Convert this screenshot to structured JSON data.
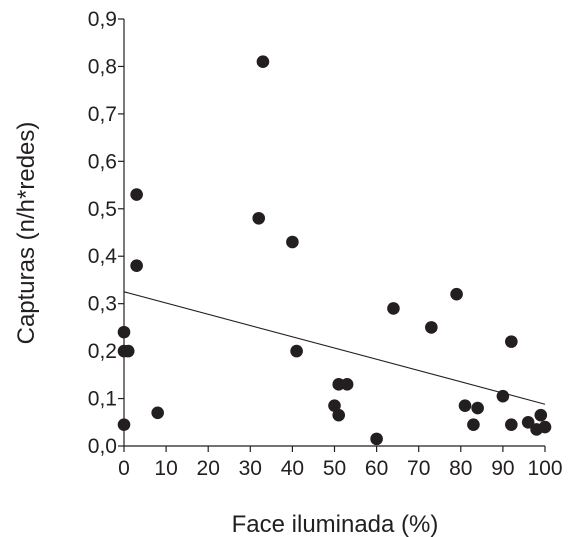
{
  "chart_data": {
    "type": "scatter",
    "title": "",
    "xlabel": "Face iluminada (%)",
    "ylabel": "Capturas (n/h*redes)",
    "xlim": [
      0,
      100
    ],
    "ylim": [
      0,
      0.9
    ],
    "x_ticks": [
      "0",
      "10",
      "20",
      "30",
      "40",
      "50",
      "60",
      "70",
      "80",
      "90",
      "100"
    ],
    "y_ticks": [
      "0,0",
      "0,1",
      "0,2",
      "0,3",
      "0,4",
      "0,5",
      "0,6",
      "0,7",
      "0,8",
      "0,9"
    ],
    "grid": false,
    "legend": "none",
    "point_color": "#231f20",
    "series": [
      {
        "x": [
          0,
          0,
          1,
          0,
          3,
          3,
          8,
          32,
          33,
          40,
          41,
          50,
          51,
          51,
          53,
          60,
          64,
          73,
          79,
          81,
          83,
          84,
          90,
          92,
          92,
          96,
          98,
          99,
          100
        ],
        "y": [
          0.045,
          0.24,
          0.2,
          0.2,
          0.53,
          0.38,
          0.07,
          0.48,
          0.81,
          0.43,
          0.2,
          0.085,
          0.13,
          0.065,
          0.13,
          0.015,
          0.29,
          0.25,
          0.32,
          0.085,
          0.045,
          0.08,
          0.105,
          0.22,
          0.045,
          0.05,
          0.035,
          0.065,
          0.04
        ]
      }
    ],
    "trendline": {
      "x": [
        0,
        100
      ],
      "y": [
        0.325,
        0.088
      ]
    }
  }
}
